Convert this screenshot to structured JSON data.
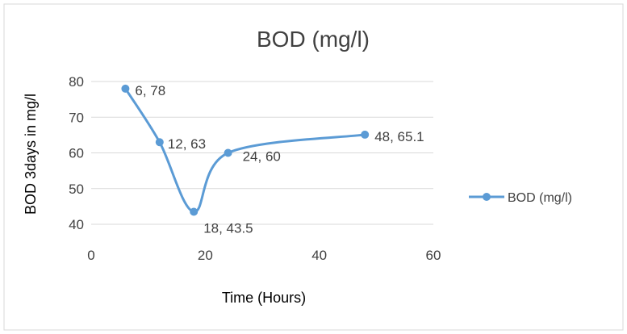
{
  "chart_data": {
    "type": "line",
    "title": "BOD (mg/l)",
    "xlabel": "Time (Hours)",
    "ylabel": "BOD 3days in mg/l",
    "xlim": [
      0,
      60
    ],
    "ylim": [
      40,
      80
    ],
    "x_ticks": [
      0,
      20,
      40,
      60
    ],
    "y_ticks": [
      40,
      50,
      60,
      70,
      80
    ],
    "grid": "horizontal",
    "smooth": true,
    "legend_position": "right",
    "series": [
      {
        "name": "BOD (mg/l)",
        "color": "#5b9bd5",
        "x": [
          6,
          12,
          18,
          24,
          48
        ],
        "y": [
          78,
          63,
          43.5,
          60,
          65.1
        ],
        "labels": [
          "6, 78",
          "12, 63",
          "18, 43.5",
          "24, 60",
          "48, 65.1"
        ]
      }
    ]
  }
}
